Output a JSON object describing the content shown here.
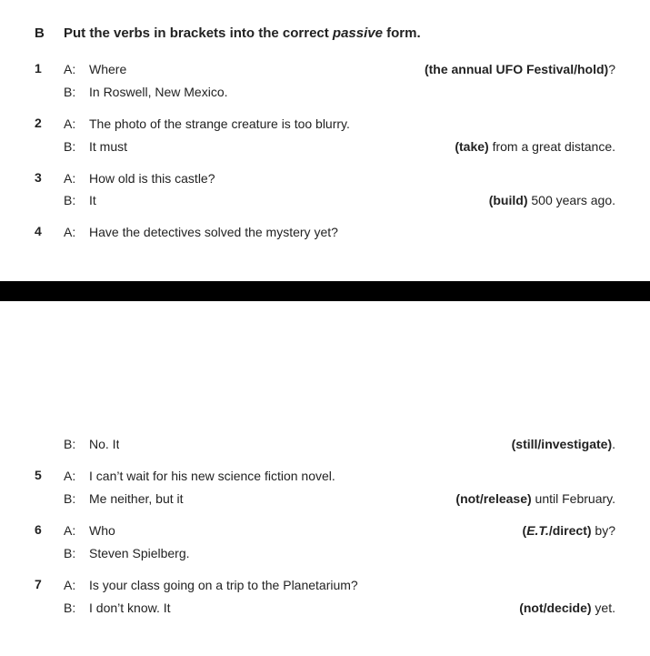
{
  "section_letter": "B",
  "instruction_pre": "Put the verbs in brackets into the correct ",
  "instruction_italic": "passive",
  "instruction_post": " form.",
  "items": [
    {
      "num": "1",
      "lines": [
        {
          "speaker": "A:",
          "lead": "Where",
          "bracket": "(the annual UFO Festival/hold)",
          "tail_after": "?"
        },
        {
          "speaker": "B:",
          "lead": "In Roswell, New Mexico."
        }
      ]
    },
    {
      "num": "2",
      "lines": [
        {
          "speaker": "A:",
          "lead": "The photo of the strange creature is too blurry."
        },
        {
          "speaker": "B:",
          "lead": "It must",
          "bracket": "(take)",
          "tail_after": " from a great distance."
        }
      ]
    },
    {
      "num": "3",
      "lines": [
        {
          "speaker": "A:",
          "lead": "How old is this castle?"
        },
        {
          "speaker": "B:",
          "lead": "It",
          "bracket": "(build)",
          "tail_after": " 500 years ago."
        }
      ]
    },
    {
      "num": "4",
      "lines": [
        {
          "speaker": "A:",
          "lead": "Have the detectives solved the mystery yet?"
        }
      ]
    }
  ],
  "items_cont": [
    {
      "num": "",
      "lines": [
        {
          "speaker": "B:",
          "lead": "No. It",
          "bracket": "(still/investigate)",
          "tail_after": "."
        }
      ]
    },
    {
      "num": "5",
      "lines": [
        {
          "speaker": "A:",
          "lead": "I can’t wait for his new science fiction novel."
        },
        {
          "speaker": "B:",
          "lead": "Me neither, but it",
          "bracket": "(not/release)",
          "tail_after": " until February."
        }
      ]
    },
    {
      "num": "6",
      "lines": [
        {
          "speaker": "A:",
          "lead": "Who",
          "bracket_mixed": {
            "pre": "(",
            "italic": "E.T.",
            "post": "/direct)"
          },
          "tail_after": " by?"
        },
        {
          "speaker": "B:",
          "lead": "Steven Spielberg."
        }
      ]
    },
    {
      "num": "7",
      "lines": [
        {
          "speaker": "A:",
          "lead": "Is your class going on a trip to the Planetarium?"
        },
        {
          "speaker": "B:",
          "lead": "I don’t know. It",
          "bracket": "(not/decide)",
          "tail_after": " yet."
        }
      ]
    }
  ]
}
